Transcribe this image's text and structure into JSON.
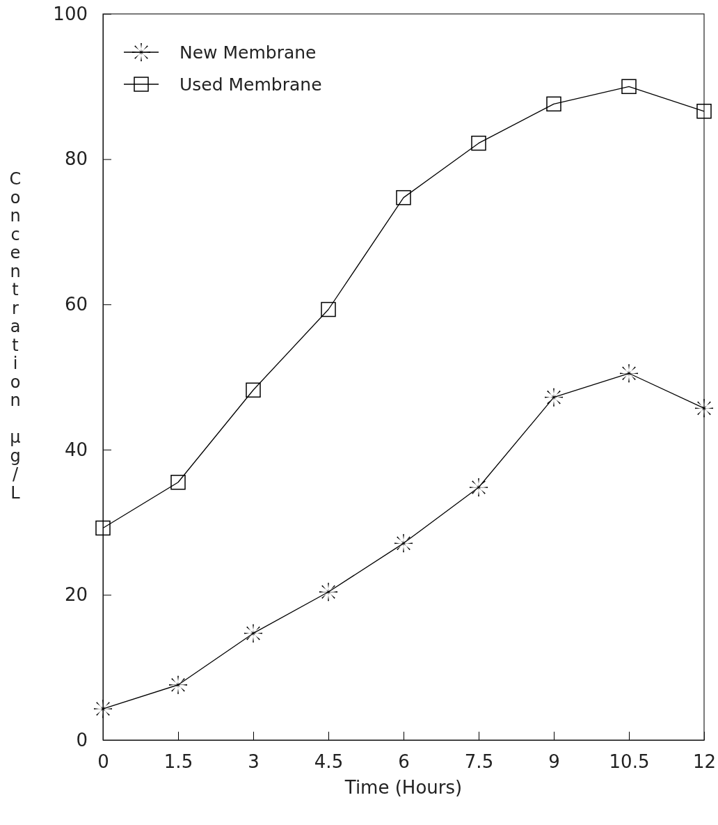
{
  "chart_data": {
    "type": "line",
    "xlabel": "Time (Hours)",
    "ylabel": "Concentration µg/L",
    "x": [
      0,
      1.5,
      3,
      4.5,
      6,
      7.5,
      9,
      10.5,
      12
    ],
    "xlim": [
      0,
      12
    ],
    "xticks": [
      0,
      1.5,
      3,
      4.5,
      6,
      7.5,
      9,
      10.5,
      12
    ],
    "ylim": [
      0,
      100
    ],
    "yticks": [
      0,
      20,
      40,
      60,
      80,
      100
    ],
    "grid": false,
    "legend": "top left",
    "line_style": "solid",
    "series": [
      {
        "name": "New Membrane",
        "color": "#000000",
        "marker": "cross",
        "values": [
          4.3,
          7.6,
          14.7,
          20.4,
          27.1,
          34.8,
          47.2,
          50.5,
          45.7
        ]
      },
      {
        "name": "Used Membrane",
        "color": "#000000",
        "marker": "square",
        "values": [
          29.2,
          35.5,
          48.2,
          59.3,
          74.7,
          82.2,
          87.6,
          90.0,
          86.6
        ]
      }
    ]
  }
}
